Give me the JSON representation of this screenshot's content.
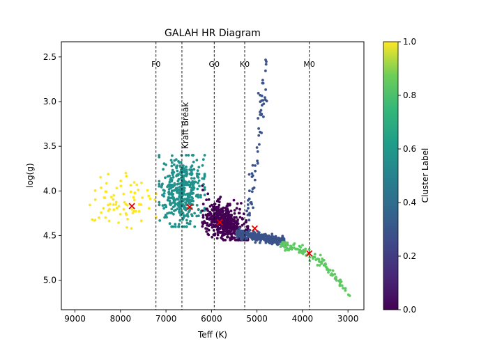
{
  "chart_data": {
    "type": "scatter",
    "title": "GALAH HR Diagram",
    "xlabel": "Teff (K)",
    "ylabel": "log(g)",
    "xlim": [
      9300,
      2650
    ],
    "ylim": [
      5.33,
      2.33
    ],
    "x_inverted": true,
    "y_inverted": true,
    "x_ticks": [
      9000,
      8000,
      7000,
      6000,
      5000,
      4000,
      3000
    ],
    "x_tick_labels": [
      "9000",
      "8000",
      "7000",
      "6000",
      "5000",
      "4000",
      "3000"
    ],
    "y_ticks": [
      2.5,
      3.0,
      3.5,
      4.0,
      4.5,
      5.0
    ],
    "y_tick_labels": [
      "2.5",
      "3.0",
      "3.5",
      "4.0",
      "4.5",
      "5.0"
    ],
    "grid": false,
    "colorbar": {
      "label": "Cluster Label",
      "range": [
        0.0,
        1.0
      ],
      "ticks": [
        0.0,
        0.2,
        0.4,
        0.6,
        0.8,
        1.0
      ],
      "tick_labels": [
        "0.0",
        "0.2",
        "0.4",
        "0.6",
        "0.8",
        "1.0"
      ],
      "colormap": "viridis"
    },
    "vertical_lines": [
      {
        "x": 7220,
        "label": "F0"
      },
      {
        "x": 6650,
        "label": "Kraft Break",
        "rotated": true
      },
      {
        "x": 5940,
        "label": "G0"
      },
      {
        "x": 5270,
        "label": "K0"
      },
      {
        "x": 3850,
        "label": "M0"
      }
    ],
    "clusters": [
      {
        "value": 1.0,
        "color": "#fde725",
        "center": [
          7750,
          4.17
        ],
        "n": 75,
        "region": {
          "x": [
            7200,
            8800
          ],
          "y": [
            3.8,
            4.42
          ]
        }
      },
      {
        "value": 0.5,
        "color": "#21918c",
        "center": [
          6480,
          4.18
        ],
        "n": 420,
        "region": {
          "x": [
            6150,
            7150
          ],
          "y": [
            3.6,
            4.4
          ]
        }
      },
      {
        "value": 0.0,
        "color": "#440154",
        "center": [
          5820,
          4.35
        ],
        "n": 460,
        "region": {
          "x": [
            5200,
            6200
          ],
          "y": [
            3.75,
            4.55
          ]
        }
      },
      {
        "value": 0.25,
        "color": "#3b528b",
        "center": [
          5050,
          4.42
        ],
        "n": 320,
        "region": {
          "x": [
            4400,
            5450
          ],
          "y": [
            4.44,
            4.61
          ]
        }
      },
      {
        "value": 0.25,
        "color": "#3b528b",
        "center": null,
        "n": 60,
        "region": {
          "x": [
            4700,
            5250
          ],
          "y": [
            2.45,
            4.4
          ]
        },
        "shape": "giant-branch"
      },
      {
        "value": 0.8,
        "color": "#5ec962",
        "center": [
          3850,
          4.7
        ],
        "n": 110,
        "region": {
          "x": [
            2950,
            4500
          ],
          "y": [
            4.58,
            5.18
          ]
        }
      }
    ]
  }
}
